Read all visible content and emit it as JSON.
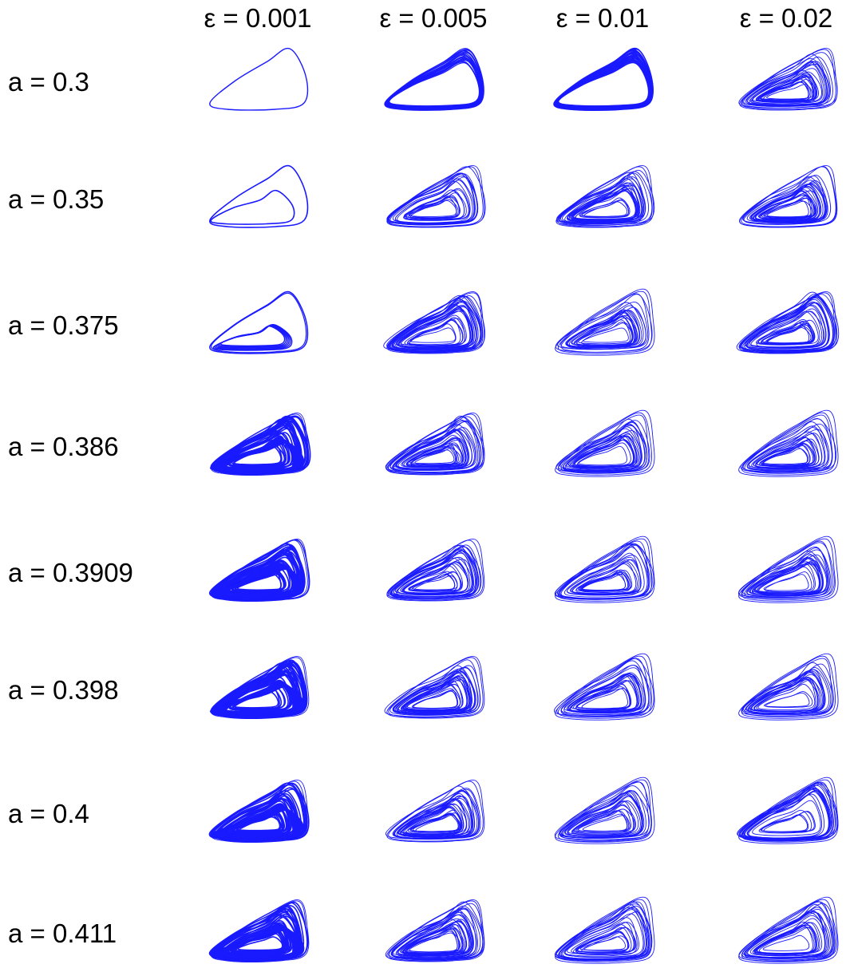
{
  "figure": {
    "column_headers": [
      "ε = 0.001",
      "ε = 0.005",
      "ε = 0.01",
      "ε = 0.02"
    ],
    "row_labels": [
      "a = 0.3",
      "a = 0.35",
      "a = 0.375",
      "a = 0.386",
      "a = 0.3909",
      "a = 0.398",
      "a = 0.4",
      "a = 0.411"
    ],
    "curve_color": "#1a1aff",
    "panel_type": "phase-space attractor projection",
    "panels": [
      [
        {
          "regime": "single-loop",
          "density": 1
        },
        {
          "regime": "thick-band",
          "density": 18
        },
        {
          "regime": "thick-band",
          "density": 28
        },
        {
          "regime": "chaotic",
          "density": 26
        }
      ],
      [
        {
          "regime": "two-loop",
          "density": 2
        },
        {
          "regime": "chaotic",
          "density": 22
        },
        {
          "regime": "chaotic",
          "density": 26
        },
        {
          "regime": "chaotic",
          "density": 26
        }
      ],
      [
        {
          "regime": "multi-loop",
          "density": 6
        },
        {
          "regime": "chaotic",
          "density": 30
        },
        {
          "regime": "chaotic-sparse",
          "density": 22
        },
        {
          "regime": "chaotic",
          "density": 30
        }
      ],
      [
        {
          "regime": "chaotic-dense",
          "density": 34
        },
        {
          "regime": "chaotic",
          "density": 30
        },
        {
          "regime": "chaotic-sparse",
          "density": 22
        },
        {
          "regime": "chaotic-sparse",
          "density": 22
        }
      ],
      [
        {
          "regime": "chaotic-dense",
          "density": 34
        },
        {
          "regime": "chaotic",
          "density": 28
        },
        {
          "regime": "chaotic-sparse",
          "density": 22
        },
        {
          "regime": "chaotic-sparse",
          "density": 22
        }
      ],
      [
        {
          "regime": "chaotic-dense",
          "density": 34
        },
        {
          "regime": "chaotic",
          "density": 28
        },
        {
          "regime": "chaotic-sparse",
          "density": 22
        },
        {
          "regime": "chaotic-sparse",
          "density": 20
        }
      ],
      [
        {
          "regime": "chaotic-dense",
          "density": 34
        },
        {
          "regime": "chaotic",
          "density": 28
        },
        {
          "regime": "chaotic-sparse",
          "density": 22
        },
        {
          "regime": "chaotic-sparse",
          "density": 22
        }
      ],
      [
        {
          "regime": "chaotic-dense",
          "density": 34
        },
        {
          "regime": "chaotic",
          "density": 28
        },
        {
          "regime": "chaotic-sparse",
          "density": 22
        },
        {
          "regime": "chaotic-sparse",
          "density": 22
        }
      ]
    ]
  }
}
